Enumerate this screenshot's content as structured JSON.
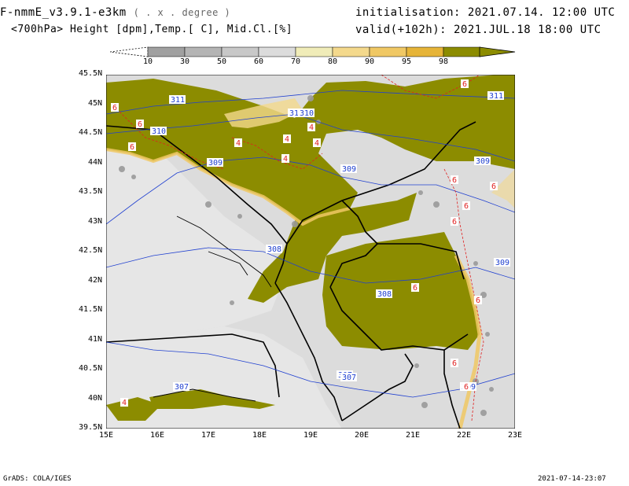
{
  "header": {
    "model": "F-nmmE_v3.9.1-e3km",
    "unit_note": "( . x . degree )",
    "fields": "<700hPa> Height [dpm],Temp.[ C], Mid.Cl.[%]",
    "init": "initialisation: 2021.07.14.  12:00 UTC",
    "valid": "valid(+102h): 2021.JUL.18  18:00 UTC"
  },
  "colorbar": {
    "labels": [
      "10",
      "30",
      "50",
      "60",
      "70",
      "80",
      "90",
      "95",
      "98"
    ],
    "colors": [
      "#a0a0a0",
      "#b4b4b4",
      "#c8c8c8",
      "#dcdcdc",
      "#f0ecb8",
      "#f4d98c",
      "#f0c864",
      "#e6b438",
      "#8c8c00"
    ]
  },
  "axes": {
    "lat_labels": [
      "45.5N",
      "45N",
      "44.5N",
      "44N",
      "43.5N",
      "43N",
      "42.5N",
      "42N",
      "41.5N",
      "41N",
      "40.5N",
      "40N",
      "39.5N"
    ],
    "lon_labels": [
      "15E",
      "16E",
      "17E",
      "18E",
      "19E",
      "20E",
      "21E",
      "22E",
      "23E"
    ]
  },
  "height_contours": [
    "311",
    "310",
    "310",
    "310",
    "309",
    "309",
    "309",
    "308",
    "308",
    "307",
    "307",
    "307",
    "309",
    "309",
    "311"
  ],
  "temp_labels": [
    "6",
    "6",
    "6",
    "6",
    "6",
    "4",
    "4",
    "4",
    "4",
    "4",
    "6",
    "6",
    "6",
    "6",
    "6",
    "6",
    "6",
    "4"
  ],
  "footer": {
    "left": "GrADS: COLA/IGES",
    "right": "2021-07-14-23:07"
  }
}
